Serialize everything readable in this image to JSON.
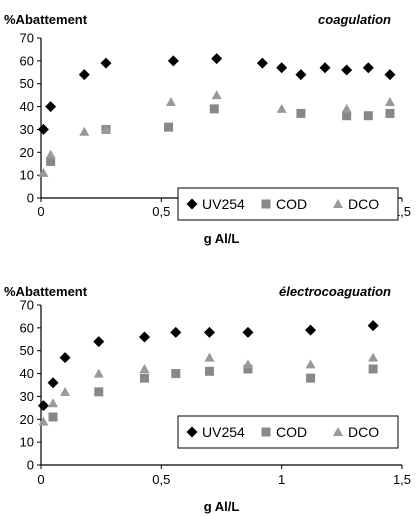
{
  "chart_data": [
    {
      "type": "scatter",
      "title": "coagulation",
      "ylabel": "%Abattement",
      "xlabel": "g Al/L",
      "xlim": [
        0,
        1.5
      ],
      "ylim": [
        0,
        70
      ],
      "xticks": [
        0,
        0.5,
        1,
        1.5
      ],
      "xtick_labels": [
        "0",
        "0,5",
        "1",
        "1,5"
      ],
      "yticks": [
        0,
        10,
        20,
        30,
        40,
        50,
        60,
        70
      ],
      "ytick_labels": [
        "0",
        "10",
        "20",
        "30",
        "40",
        "50",
        "60",
        "70"
      ],
      "legend_position": "bottom-right",
      "series": [
        {
          "name": "UV254",
          "marker": "diamond",
          "color": "#000000",
          "x": [
            0.01,
            0.04,
            0.18,
            0.27,
            0.55,
            0.73,
            0.92,
            1.0,
            1.08,
            1.18,
            1.27,
            1.36,
            1.45
          ],
          "y": [
            30,
            40,
            54,
            59,
            60,
            61,
            59,
            57,
            54,
            57,
            56,
            57,
            54
          ]
        },
        {
          "name": "COD",
          "marker": "square",
          "color": "#888888",
          "x": [
            0.04,
            0.27,
            0.53,
            0.72,
            1.08,
            1.27,
            1.36,
            1.45
          ],
          "y": [
            16,
            30,
            31,
            39,
            37,
            36,
            36,
            37
          ]
        },
        {
          "name": "DCO",
          "marker": "triangle",
          "color": "#999999",
          "x": [
            0.01,
            0.04,
            0.18,
            0.27,
            0.54,
            0.73,
            1.0,
            1.27,
            1.45
          ],
          "y": [
            11,
            19,
            29,
            30,
            42,
            45,
            39,
            39,
            42
          ]
        }
      ]
    },
    {
      "type": "scatter",
      "title": "électrocoaguation",
      "ylabel": "%Abattement",
      "xlabel": "g Al/L",
      "xlim": [
        0,
        1.5
      ],
      "ylim": [
        0,
        70
      ],
      "xticks": [
        0,
        0.5,
        1,
        1.5
      ],
      "xtick_labels": [
        "0",
        "0,5",
        "1",
        "1,5"
      ],
      "yticks": [
        0,
        10,
        20,
        30,
        40,
        50,
        60,
        70
      ],
      "ytick_labels": [
        "0",
        "10",
        "20",
        "30",
        "40",
        "50",
        "60",
        "70"
      ],
      "legend_position": "bottom-right",
      "series": [
        {
          "name": "UV254",
          "marker": "diamond",
          "color": "#000000",
          "x": [
            0.01,
            0.05,
            0.1,
            0.24,
            0.43,
            0.56,
            0.7,
            0.86,
            1.12,
            1.38
          ],
          "y": [
            26,
            36,
            47,
            54,
            56,
            58,
            58,
            58,
            59,
            61
          ]
        },
        {
          "name": "COD",
          "marker": "square",
          "color": "#888888",
          "x": [
            0.05,
            0.24,
            0.43,
            0.56,
            0.7,
            0.86,
            1.12,
            1.38
          ],
          "y": [
            21,
            32,
            38,
            40,
            41,
            42,
            38,
            42
          ]
        },
        {
          "name": "DCO",
          "marker": "triangle",
          "color": "#999999",
          "x": [
            0.01,
            0.05,
            0.1,
            0.24,
            0.43,
            0.7,
            0.86,
            1.12,
            1.38
          ],
          "y": [
            19,
            27,
            32,
            40,
            42,
            47,
            44,
            44,
            47
          ]
        }
      ]
    }
  ]
}
